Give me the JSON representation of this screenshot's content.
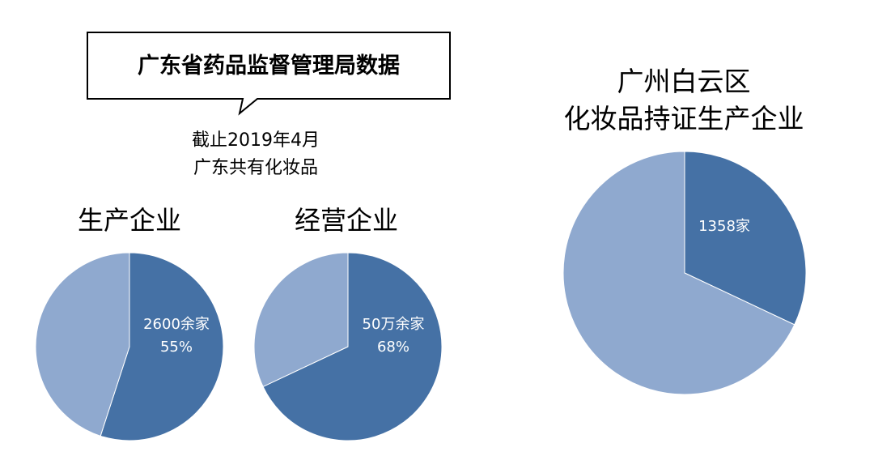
{
  "header": {
    "callout": "广东省药品监督管理局数据",
    "subtitle_line1": "截止2019年4月",
    "subtitle_line2": "广东共有化妆品"
  },
  "colors": {
    "main": "#4571A5",
    "rest": "#8FA9CF",
    "outline": "#000000"
  },
  "chart_data": [
    {
      "type": "pie",
      "title": "生产企业",
      "slices": [
        {
          "label_lines": [
            "2600余家",
            "55%"
          ],
          "value": 55,
          "color": "#4571A5"
        },
        {
          "label_lines": [],
          "value": 45,
          "color": "#8FA9CF"
        }
      ]
    },
    {
      "type": "pie",
      "title": "经营企业",
      "slices": [
        {
          "label_lines": [
            "50万余家",
            "68%"
          ],
          "value": 68,
          "color": "#4571A5"
        },
        {
          "label_lines": [],
          "value": 32,
          "color": "#8FA9CF"
        }
      ]
    },
    {
      "type": "pie",
      "title_lines": [
        "广州白云区",
        "化妆品持证生产企业"
      ],
      "slices": [
        {
          "label_lines": [
            "1358家"
          ],
          "value": 32,
          "color": "#4571A5"
        },
        {
          "label_lines": [],
          "value": 68,
          "color": "#8FA9CF"
        }
      ]
    }
  ]
}
